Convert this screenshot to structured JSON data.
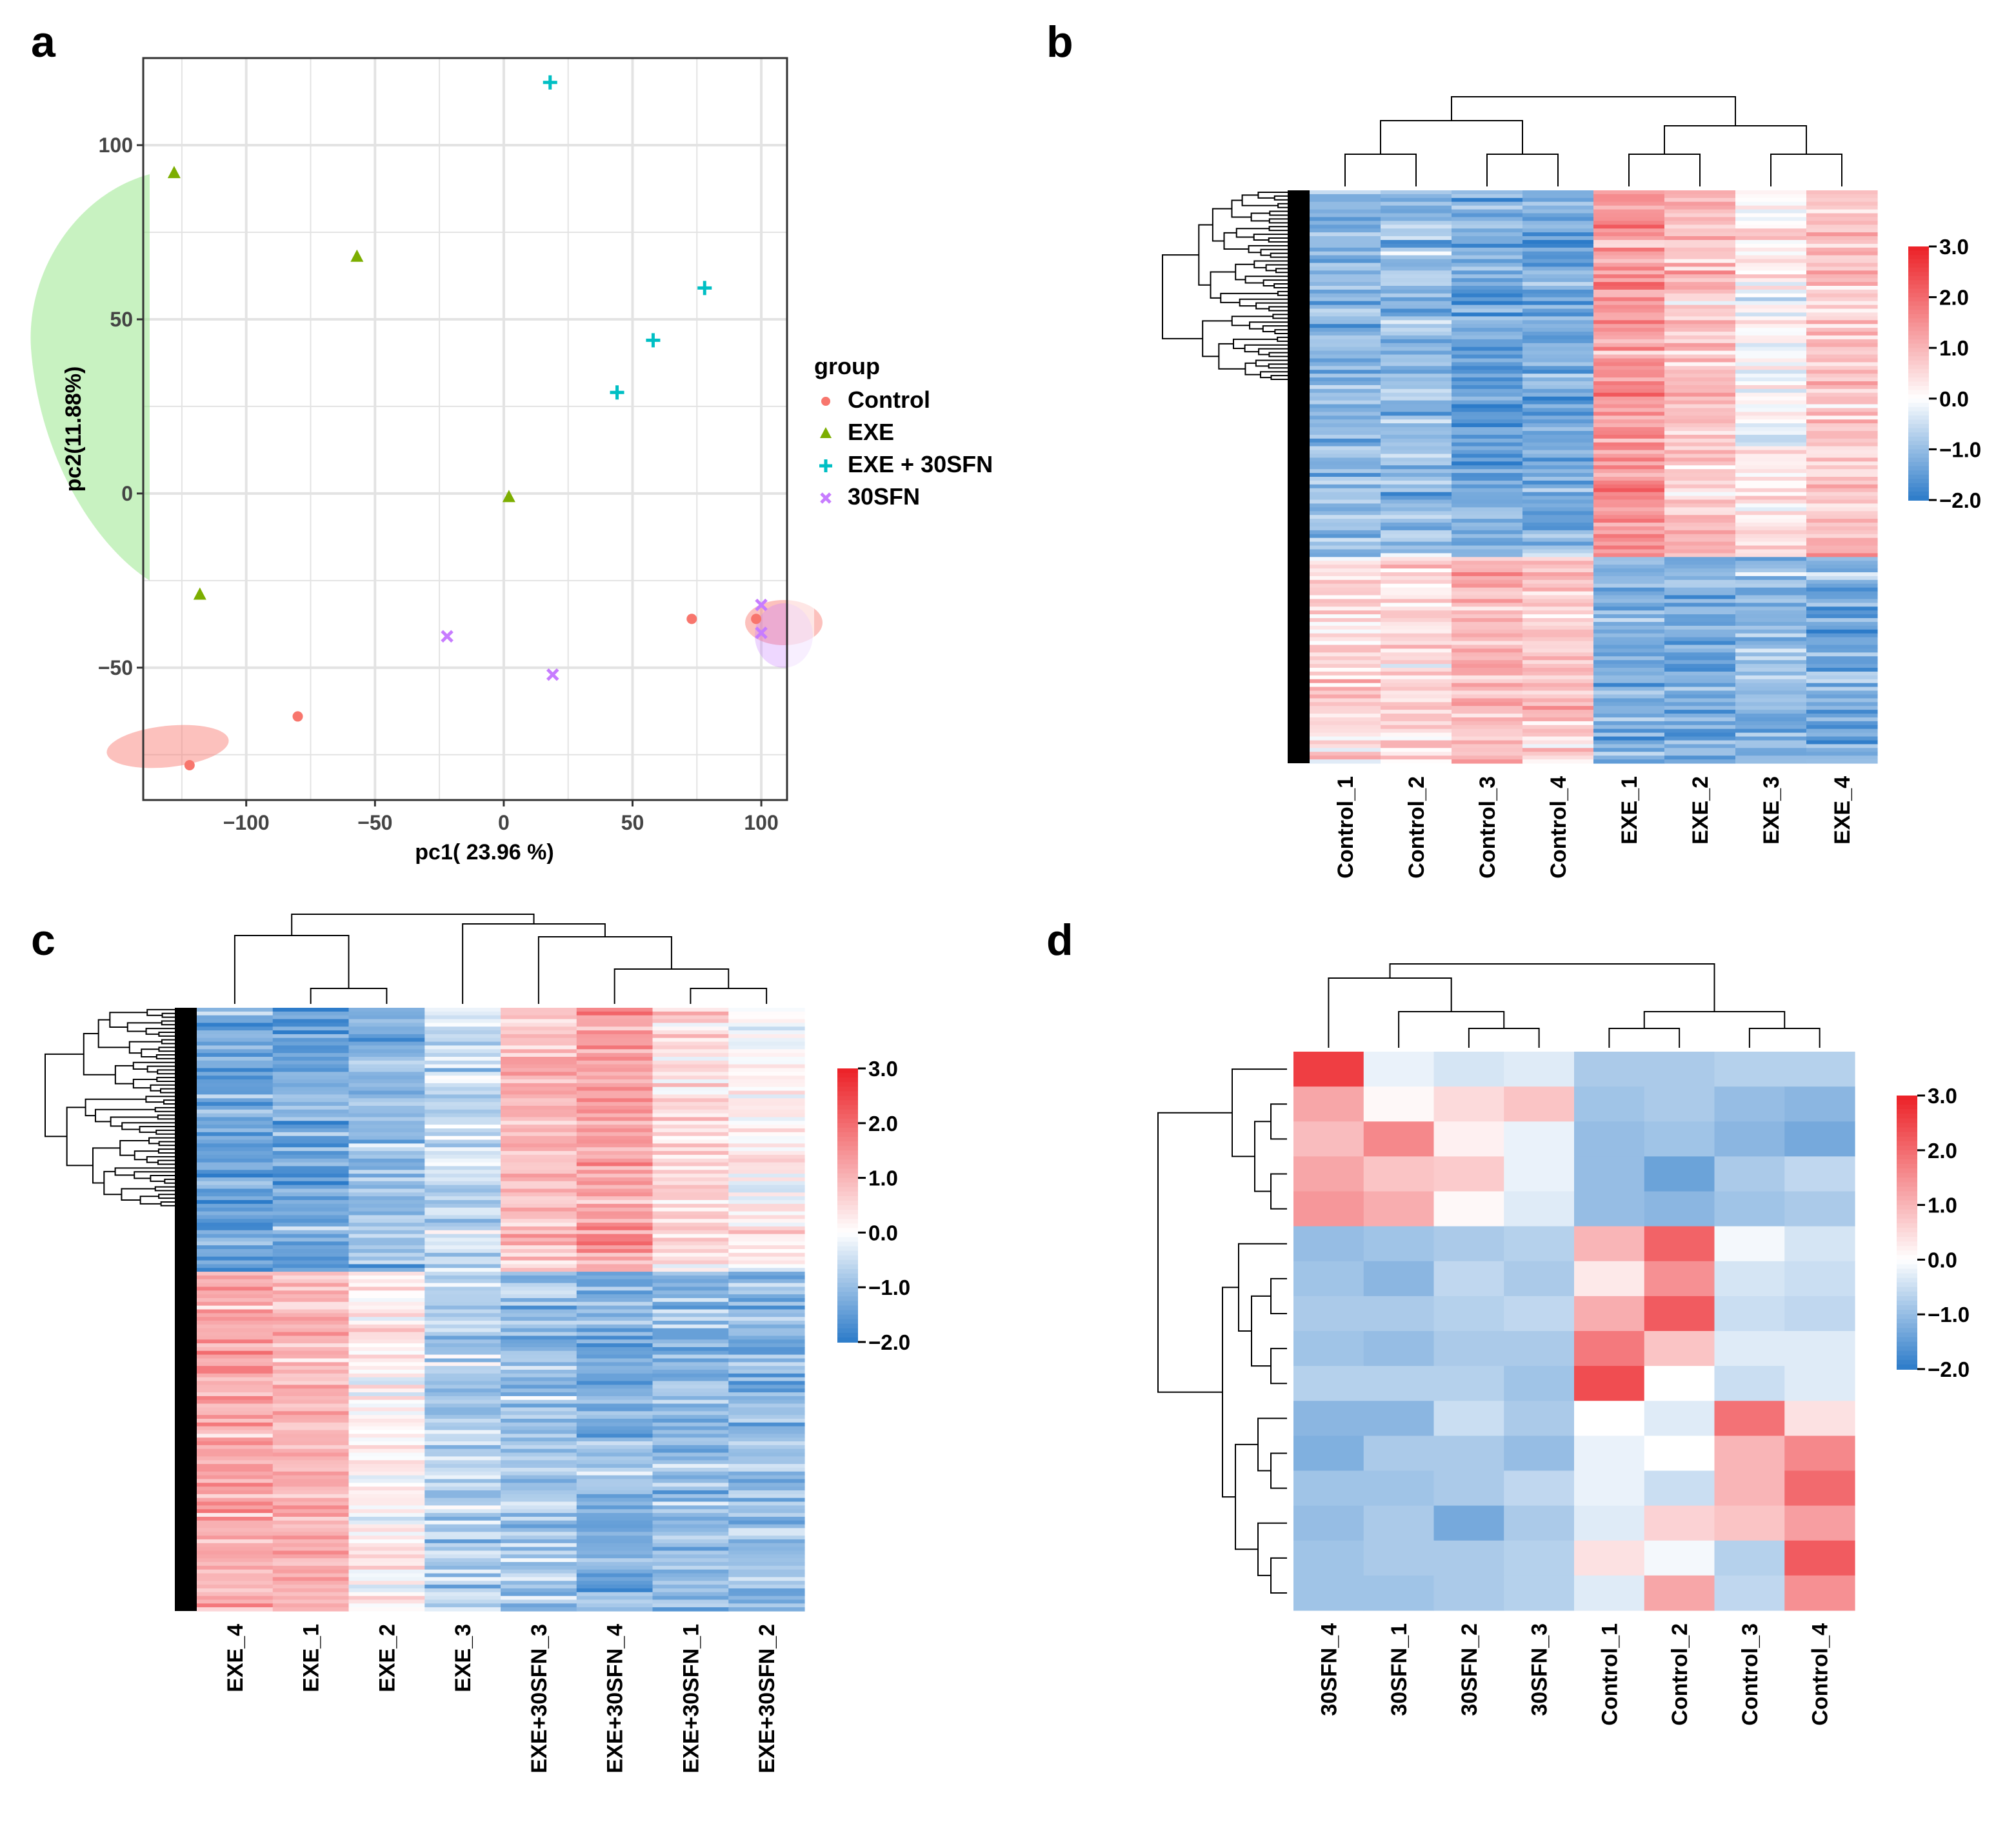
{
  "chart_data": [
    {
      "panel": "a",
      "type": "scatter",
      "xlabel": "pc1( 23.96 %)",
      "ylabel": "pc2(11.88%)",
      "xlim": [
        -140,
        110
      ],
      "ylim": [
        -88,
        125
      ],
      "xticks": [
        -100,
        -50,
        0,
        50,
        100
      ],
      "yticks": [
        -50,
        0,
        50,
        100
      ],
      "grid": true,
      "legend_title": "group",
      "legend_position": "right",
      "series": [
        {
          "name": "Control",
          "color": "#F8766D",
          "marker": "circle",
          "points": [
            [
              -122,
              -78
            ],
            [
              -80,
              -64
            ],
            [
              73,
              -36
            ],
            [
              98,
              -36
            ]
          ]
        },
        {
          "name": "EXE",
          "color": "#7CAE00",
          "marker": "triangle",
          "points": [
            [
              -128,
              92
            ],
            [
              -57,
              68
            ],
            [
              2,
              -1
            ],
            [
              -118,
              -29
            ]
          ]
        },
        {
          "name": "EXE + 30SFN",
          "color": "#00BFC4",
          "marker": "plus",
          "points": [
            [
              18,
              118
            ],
            [
              78,
              59
            ],
            [
              58,
              44
            ],
            [
              44,
              29
            ]
          ]
        },
        {
          "name": "30SFN",
          "color": "#C77CFF",
          "marker": "cross",
          "points": [
            [
              -22,
              -41
            ],
            [
              19,
              -52
            ],
            [
              100,
              -32
            ],
            [
              100,
              -40
            ]
          ]
        }
      ]
    },
    {
      "panel": "b",
      "type": "heatmap",
      "columns": [
        "Control_1",
        "Control_2",
        "Control_3",
        "Control_4",
        "EXE_1",
        "EXE_2",
        "EXE_3",
        "EXE_4"
      ],
      "color_range": [
        -2.0,
        3.0
      ],
      "colorbar_ticks": [
        "3.0",
        "2.0",
        "1.0",
        "0.0",
        "−1.0",
        "−2.0"
      ],
      "clusters": [
        {
          "row_fraction": 0.64,
          "means": [
            -1.1,
            -1.0,
            -1.3,
            -1.3,
            1.4,
            0.9,
            0.1,
            0.8
          ]
        },
        {
          "row_fraction": 0.36,
          "means": [
            0.5,
            0.4,
            0.9,
            0.7,
            -1.2,
            -1.2,
            -1.1,
            -1.3
          ]
        }
      ]
    },
    {
      "panel": "c",
      "type": "heatmap",
      "columns": [
        "EXE_4",
        "EXE_1",
        "EXE_2",
        "EXE_3",
        "EXE+30SFN_3",
        "EXE+30SFN_4",
        "EXE+30SFN_1",
        "EXE+30SFN_2"
      ],
      "color_range": [
        -2.0,
        3.0
      ],
      "colorbar_ticks": [
        "3.0",
        "2.0",
        "1.0",
        "0.0",
        "−1.0",
        "−2.0"
      ],
      "clusters": [
        {
          "row_fraction": 0.44,
          "means": [
            -1.4,
            -1.3,
            -1.0,
            -0.6,
            0.9,
            1.3,
            0.5,
            0.1
          ]
        },
        {
          "row_fraction": 0.56,
          "means": [
            1.2,
            1.0,
            0.2,
            -0.7,
            -0.9,
            -1.1,
            -1.0,
            -1.1
          ]
        }
      ]
    },
    {
      "panel": "d",
      "type": "heatmap",
      "columns": [
        "30SFN_4",
        "30SFN_1",
        "30SFN_2",
        "30SFN_3",
        "Control_1",
        "Control_2",
        "Control_3",
        "Control_4"
      ],
      "color_range": [
        -2.0,
        3.0
      ],
      "colorbar_ticks": [
        "3.0",
        "2.0",
        "1.0",
        "0.0",
        "−1.0",
        "−2.0"
      ],
      "values": [
        [
          2.6,
          -0.2,
          -0.4,
          -0.3,
          -0.8,
          -0.8,
          -0.7,
          -0.7
        ],
        [
          1.2,
          0.1,
          0.5,
          0.8,
          -0.9,
          -0.8,
          -1.0,
          -1.1
        ],
        [
          0.9,
          1.6,
          0.2,
          -0.2,
          -1.0,
          -0.9,
          -1.1,
          -1.3
        ],
        [
          1.2,
          0.8,
          0.7,
          -0.2,
          -1.0,
          -1.4,
          -0.8,
          -0.6
        ],
        [
          1.4,
          1.1,
          0.1,
          -0.3,
          -1.0,
          -1.1,
          -0.9,
          -0.8
        ],
        [
          -1.0,
          -0.9,
          -0.8,
          -0.7,
          1.0,
          2.1,
          -0.1,
          -0.4
        ],
        [
          -0.9,
          -1.1,
          -0.6,
          -0.8,
          0.3,
          1.5,
          -0.4,
          -0.5
        ],
        [
          -0.8,
          -0.8,
          -0.7,
          -0.6,
          1.1,
          2.2,
          -0.5,
          -0.6
        ],
        [
          -0.9,
          -1.0,
          -0.8,
          -0.8,
          1.8,
          0.8,
          -0.3,
          -0.3
        ],
        [
          -0.7,
          -0.7,
          -0.7,
          -0.9,
          2.4,
          0.0,
          -0.5,
          -0.3
        ],
        [
          -1.1,
          -1.1,
          -0.5,
          -0.8,
          0.0,
          -0.3,
          1.9,
          0.4
        ],
        [
          -1.2,
          -0.8,
          -0.8,
          -1.0,
          -0.2,
          0.0,
          1.0,
          1.6
        ],
        [
          -0.9,
          -0.9,
          -0.8,
          -0.6,
          -0.2,
          -0.5,
          1.0,
          2.0
        ],
        [
          -1.0,
          -0.8,
          -1.3,
          -0.8,
          -0.3,
          0.6,
          0.8,
          1.3
        ],
        [
          -0.9,
          -0.8,
          -0.8,
          -0.7,
          0.4,
          -0.1,
          -0.7,
          2.2
        ],
        [
          -0.9,
          -0.9,
          -0.8,
          -0.7,
          -0.3,
          1.2,
          -0.6,
          1.5
        ]
      ]
    }
  ],
  "panels": {
    "a": {
      "letter": "a"
    },
    "b": {
      "letter": "b"
    },
    "c": {
      "letter": "c"
    },
    "d": {
      "letter": "d"
    }
  }
}
